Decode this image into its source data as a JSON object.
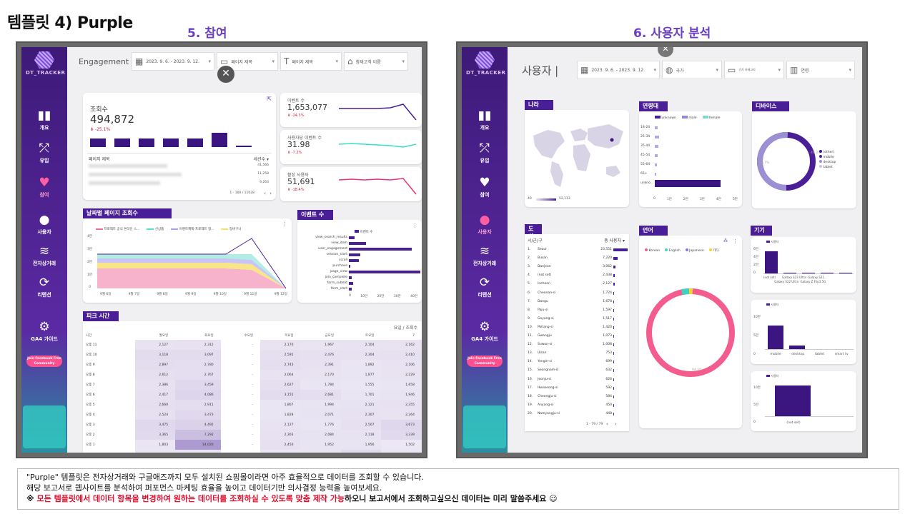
{
  "slide": {
    "title": "템플릿 4) Purple",
    "section_left": "5. 참여",
    "section_right": "6. 사용자 분석"
  },
  "brand": {
    "logo_text": "DT_TRACKER",
    "accent": "#4a1e96",
    "pink": "#ff5fa2"
  },
  "nav": [
    {
      "label": "개요",
      "icon": "bar-chart-icon"
    },
    {
      "label": "유입",
      "icon": "share-nodes-icon"
    },
    {
      "label": "참여",
      "icon": "heart-icon"
    },
    {
      "label": "사용자",
      "icon": "user-icon"
    },
    {
      "label": "전자상거래",
      "icon": "coins-icon"
    },
    {
      "label": "리텐션",
      "icon": "refresh-icon"
    },
    {
      "label": "GA4 가이드",
      "icon": "gear-icon"
    }
  ],
  "fb_badge": "Join Facebook Free Community",
  "engagement": {
    "page_title": "Engagement",
    "date_range": "2023. 9. 6. - 2023. 9. 12.",
    "filters": [
      "페이지 제목",
      "페이지 제목",
      "참재고객 이름"
    ],
    "kpi_main": {
      "label": "조회수",
      "value": "494,872",
      "delta": "-25.1%"
    },
    "table_head": {
      "col1": "페이지 제목",
      "col2": "세션수 ▾"
    },
    "table_values": [
      "41,566",
      "11,258",
      "9,263"
    ],
    "pager": "1 - 100 / 11028",
    "side_kpis": [
      {
        "label": "이벤트 수",
        "value": "1,653,077",
        "delta": "-24.3%"
      },
      {
        "label": "사용자당 이벤트 수",
        "value": "31.98",
        "delta": "-7.2%"
      },
      {
        "label": "활성 사용자",
        "value": "51,691",
        "delta": "-18.4%"
      }
    ],
    "daily_chart": {
      "tag": "날짜별 페이지 조회수",
      "legend": [
        "프로젝트 공식 온라인 스...",
        "신상품",
        "이벤트혜택-프로젝트 형...",
        "장바구니"
      ],
      "y_ticks": [
        "4만",
        "3만",
        "2만",
        "1만",
        "0"
      ],
      "x_ticks": [
        "9월 6일",
        "9월 7일",
        "9월 8일",
        "9월 9일",
        "9월 10일",
        "9월 11일",
        "9월 12일"
      ]
    },
    "event_chart": {
      "tag": "이벤트 수",
      "legend": "이벤트 수",
      "x_ticks": [
        "0",
        "10만",
        "20만",
        "30만",
        "40만"
      ]
    },
    "peak": {
      "tag": "피크 시간",
      "metric": "요일 / 조회수",
      "row_head": "시간",
      "days": [
        "월요일",
        "화요일",
        "수요일",
        "목요일",
        "금요일",
        "토요일",
        "7"
      ],
      "rows": [
        {
          "h": "오후 11",
          "v": [
            "2,127",
            "2,312",
            "-",
            "2,170",
            "1,967",
            "2,104",
            "2,162"
          ]
        },
        {
          "h": "오후 10",
          "v": [
            "3,118",
            "3,097",
            "-",
            "2,595",
            "2,476",
            "2,304",
            "2,410"
          ]
        },
        {
          "h": "오후 9",
          "v": [
            "2,897",
            "2,780",
            "-",
            "2,743",
            "2,391",
            "1,892",
            "2,106"
          ]
        },
        {
          "h": "오후 8",
          "v": [
            "2,612",
            "2,767",
            "-",
            "2,064",
            "2,170",
            "1,877",
            "2,229"
          ]
        },
        {
          "h": "오후 7",
          "v": [
            "2,386",
            "3,459",
            "-",
            "2,627",
            "1,784",
            "1,555",
            "1,658"
          ]
        },
        {
          "h": "오후 6",
          "v": [
            "2,417",
            "4,086",
            "-",
            "3,155",
            "2,681",
            "1,701",
            "1,946"
          ]
        },
        {
          "h": "오후 5",
          "v": [
            "2,660",
            "2,911",
            "-",
            "1,867",
            "1,994",
            "2,121",
            "2,355"
          ]
        },
        {
          "h": "오후 4",
          "v": [
            "2,524",
            "3,473",
            "-",
            "1,828",
            "2,071",
            "2,307",
            "2,264"
          ]
        },
        {
          "h": "오후 3",
          "v": [
            "3,475",
            "4,492",
            "-",
            "2,127",
            "1,776",
            "2,507",
            "3,673"
          ]
        },
        {
          "h": "오후 2",
          "v": [
            "3,365",
            "7,292",
            "-",
            "2,303",
            "2,084",
            "2,118",
            "3,339"
          ]
        },
        {
          "h": "오후 1",
          "v": [
            "1,803",
            "14,020",
            "-",
            "2,450",
            "1,952",
            "1,956",
            "1,502"
          ]
        },
        {
          "h": "오후 12",
          "v": [
            "1,622",
            "1,888",
            "-",
            "1,571",
            "1,987",
            "3,163",
            "1,560"
          ]
        }
      ]
    }
  },
  "users": {
    "page_title": "사용자 |",
    "date_range": "2023. 9. 6. - 2023. 9. 12.",
    "filters": [
      "국가",
      "기기 카테고리",
      "연령"
    ],
    "country": {
      "tag": "나라",
      "scale_min": "49",
      "scale_max": "52,113"
    },
    "age": {
      "tag": "연령대",
      "legend": [
        "unknown",
        "male",
        "female"
      ],
      "y_ticks": [
        "18-24",
        "25-34",
        "35-44",
        "45-54",
        "55-64",
        "65+",
        "unkno..."
      ],
      "x_ticks": [
        "0",
        "1만",
        "2만",
        "3만",
        "4만",
        "5만"
      ]
    },
    "device": {
      "tag": "디바이스",
      "legend": [
        "(other)",
        "mobile",
        "desktop",
        "tablet"
      ],
      "label_a": "49.3%",
      "label_b": "50.7%"
    },
    "city": {
      "tag": "도시",
      "head": {
        "col1": "시/군/구",
        "col2": "총 사용자 ▾"
      },
      "rows": [
        {
          "n": "1.",
          "name": "Seoul",
          "v": "23,551"
        },
        {
          "n": "2.",
          "name": "Busan",
          "v": "7,220"
        },
        {
          "n": "3.",
          "name": "Daejeon",
          "v": "3,062"
        },
        {
          "n": "4.",
          "name": "(not set)",
          "v": "2,438"
        },
        {
          "n": "5.",
          "name": "Incheon",
          "v": "2,127"
        },
        {
          "n": "6.",
          "name": "Cheonan-si",
          "v": "1,724"
        },
        {
          "n": "7.",
          "name": "Daegu",
          "v": "1,678"
        },
        {
          "n": "8.",
          "name": "Paju-si",
          "v": "1,597"
        },
        {
          "n": "9.",
          "name": "Goyang-si",
          "v": "1,517"
        },
        {
          "n": "10.",
          "name": "Pohang-si",
          "v": "1,420"
        },
        {
          "n": "11.",
          "name": "Gwangju",
          "v": "1,073"
        },
        {
          "n": "12.",
          "name": "Suwon-si",
          "v": "1,008"
        },
        {
          "n": "13.",
          "name": "Ulsan",
          "v": "753"
        },
        {
          "n": "14.",
          "name": "Yongin-si",
          "v": "699"
        },
        {
          "n": "15.",
          "name": "Seongnam-si",
          "v": "632"
        },
        {
          "n": "16.",
          "name": "Jeonju-si",
          "v": "626"
        },
        {
          "n": "17.",
          "name": "Hwaseong-si",
          "v": "592"
        },
        {
          "n": "18.",
          "name": "Cheongju-si",
          "v": "584"
        },
        {
          "n": "19.",
          "name": "Anyang-si",
          "v": "450"
        },
        {
          "n": "20.",
          "name": "Namyangju-si",
          "v": "448"
        }
      ],
      "pager": "1 - 79 / 79"
    },
    "language": {
      "tag": "언어",
      "legend": [
        "Korean",
        "English",
        "Japanese",
        "기타"
      ],
      "label": "94.3%"
    },
    "device2": {
      "tag": "기기",
      "chart1": {
        "legend": "사용자",
        "y_ticks": [
          "6만",
          "4만",
          "2만",
          "0"
        ],
        "x_ticks": [
          "(not set)",
          "Galaxy S23 Ultra",
          "Galaxy S21...",
          "Galaxy S22 Ultra",
          "Galaxy Z Flip3 5G"
        ]
      },
      "chart2": {
        "legend": "사용자",
        "y_ticks": [
          "10만",
          "5만",
          "0"
        ],
        "x_ticks": [
          "mobile",
          "desktop",
          "tablet",
          "smart tv"
        ]
      },
      "chart3": {
        "legend": "사용자",
        "y_ticks": [
          "10만",
          "5만",
          "0"
        ],
        "x_ticks": [
          "(not set)"
        ]
      }
    }
  },
  "caption": {
    "line1": "\"Purple\" 템플릿은 전자상거래와 구글애즈까지 모두 설치된 쇼핑몰이라면 아주 효율적으로 데이터를 조회할 수 있습니다.",
    "line2": "해당 보고서로 웹사이트를 분석하여 퍼포먼스 마케팅 효율을 높이고 데이터기반 의사결정 능력을 높여보세요.",
    "line3_prefix": "※ ",
    "line3_red": "모든 템플릿에서 데이터 항목을 변경하여 원하는 데이터를 조회하실 수 있도록 맞춤 제작 가능",
    "line3_rest": "하오니 보고서에서 조회하고싶으신 데이터는 미리 말씀주세요 ☺"
  }
}
